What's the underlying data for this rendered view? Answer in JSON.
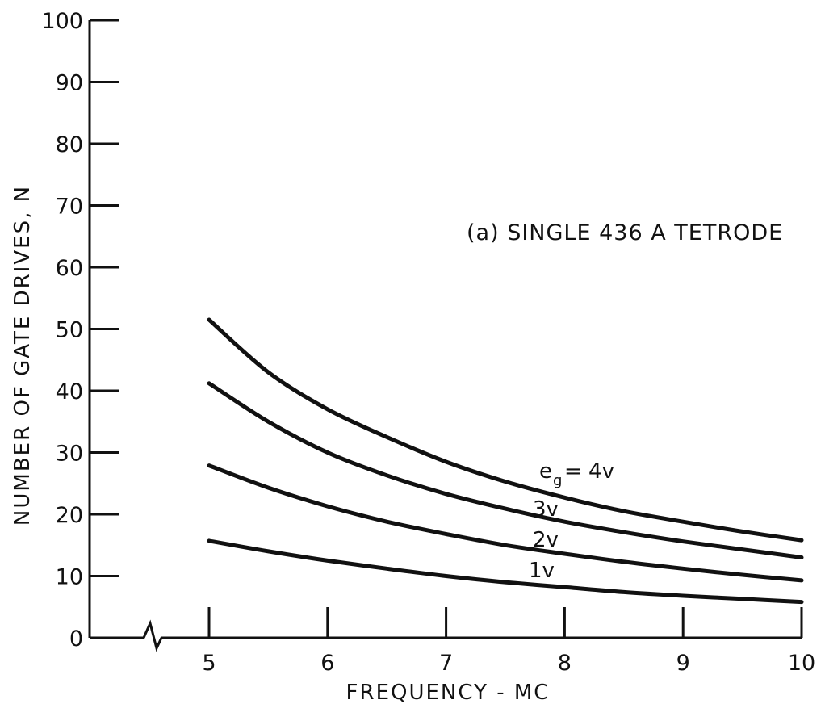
{
  "chart_data": {
    "type": "line",
    "title": "",
    "xlabel": "FREQUENCY - MC",
    "ylabel": "NUMBER OF GATE DRIVES, N",
    "xlim": [
      5,
      10
    ],
    "ylim": [
      0,
      100
    ],
    "x_broken_axis": true,
    "x_ticks": [
      5,
      6,
      7,
      8,
      9,
      10
    ],
    "y_ticks": [
      0,
      10,
      20,
      30,
      40,
      50,
      60,
      70,
      80,
      90,
      100
    ],
    "grid": false,
    "annotation": "(a) SINGLE 436 A TETRODE",
    "series": [
      {
        "label": "e_g = 4v",
        "x": [
          5,
          5.5,
          6,
          6.5,
          7,
          7.5,
          8,
          8.5,
          9,
          9.5,
          10
        ],
        "y": [
          51.5,
          43,
          37,
          32.5,
          28.5,
          25.3,
          22.7,
          20.5,
          18.8,
          17.2,
          15.8
        ]
      },
      {
        "label": "3v",
        "x": [
          5,
          5.5,
          6,
          6.5,
          7,
          7.5,
          8,
          8.5,
          9,
          9.5,
          10
        ],
        "y": [
          41.2,
          35,
          30,
          26.3,
          23.3,
          20.9,
          18.8,
          17.1,
          15.6,
          14.3,
          13
        ]
      },
      {
        "label": "2v",
        "x": [
          5,
          5.5,
          6,
          6.5,
          7,
          7.5,
          8,
          8.5,
          9,
          9.5,
          10
        ],
        "y": [
          27.9,
          24.3,
          21.3,
          18.8,
          16.8,
          15,
          13.6,
          12.3,
          11.2,
          10.2,
          9.3
        ]
      },
      {
        "label": "1v",
        "x": [
          5,
          5.5,
          6,
          6.5,
          7,
          7.5,
          8,
          8.5,
          9,
          9.5,
          10
        ],
        "y": [
          15.7,
          14,
          12.5,
          11.2,
          10,
          9,
          8.2,
          7.4,
          6.8,
          6.3,
          5.8
        ]
      }
    ]
  }
}
